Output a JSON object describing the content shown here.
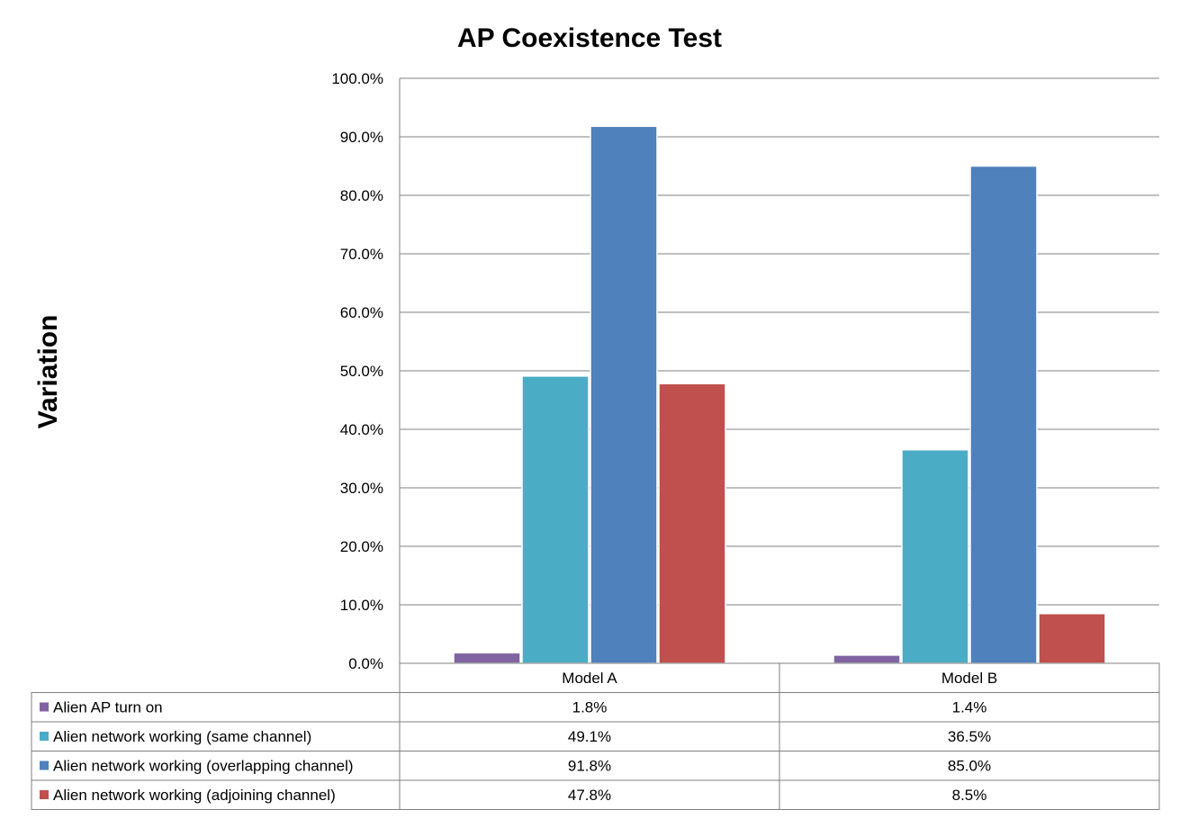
{
  "chart_data": {
    "type": "bar",
    "title": "AP Coexistence Test",
    "ylabel": "Variation",
    "xlabel": "",
    "ylim": [
      0,
      100
    ],
    "y_ticks": [
      0,
      10,
      20,
      30,
      40,
      50,
      60,
      70,
      80,
      90,
      100
    ],
    "y_tick_labels": [
      "0.0%",
      "10.0%",
      "20.0%",
      "30.0%",
      "40.0%",
      "50.0%",
      "60.0%",
      "70.0%",
      "80.0%",
      "90.0%",
      "100.0%"
    ],
    "grid": true,
    "legend": "data-table",
    "categories": [
      "Model A",
      "Model B"
    ],
    "series": [
      {
        "name": "Alien AP turn on",
        "color": "#8064a2",
        "values": [
          1.8,
          1.4
        ],
        "labels": [
          "1.8%",
          "1.4%"
        ]
      },
      {
        "name": "Alien network working (same channel)",
        "color": "#4bacc6",
        "values": [
          49.1,
          36.5
        ],
        "labels": [
          "49.1%",
          "36.5%"
        ]
      },
      {
        "name": "Alien network working (overlapping channel)",
        "color": "#4f81bd",
        "values": [
          91.8,
          85.0
        ],
        "labels": [
          "91.8%",
          "85.0%"
        ]
      },
      {
        "name": "Alien network working (adjoining channel)",
        "color": "#c0504d",
        "values": [
          47.8,
          8.5
        ],
        "labels": [
          "47.8%",
          "8.5%"
        ]
      }
    ]
  }
}
